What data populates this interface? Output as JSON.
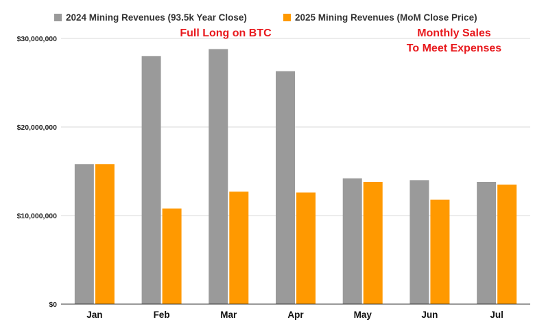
{
  "chart_data": {
    "type": "bar",
    "title": "",
    "xlabel": "",
    "ylabel": "",
    "categories": [
      "Jan",
      "Feb",
      "Mar",
      "Apr",
      "May",
      "Jun",
      "Jul"
    ],
    "series": [
      {
        "name": "2024 Mining Revenues (93.5k Year Close)",
        "color": "#9a9a9a",
        "values": [
          15800000,
          28000000,
          28800000,
          26300000,
          14200000,
          14000000,
          13800000
        ]
      },
      {
        "name": "2025 Mining Revenues (MoM Close Price)",
        "color": "#ff9900",
        "values": [
          15800000,
          10800000,
          12700000,
          12600000,
          13800000,
          11800000,
          13500000
        ]
      }
    ],
    "ylim": [
      0,
      30000000
    ],
    "yticks": [
      0,
      10000000,
      20000000,
      30000000
    ],
    "ytick_labels": [
      "$0",
      "$10,000,000",
      "$20,000,000",
      "$30,000,000"
    ],
    "grid": true,
    "legend_position": "top",
    "annotations": [
      {
        "text": "Full Long on BTC",
        "color": "#e8191d"
      },
      {
        "text": "Monthly Sales",
        "color": "#e8191d"
      },
      {
        "text": "To Meet Expenses",
        "color": "#e8191d"
      }
    ]
  }
}
